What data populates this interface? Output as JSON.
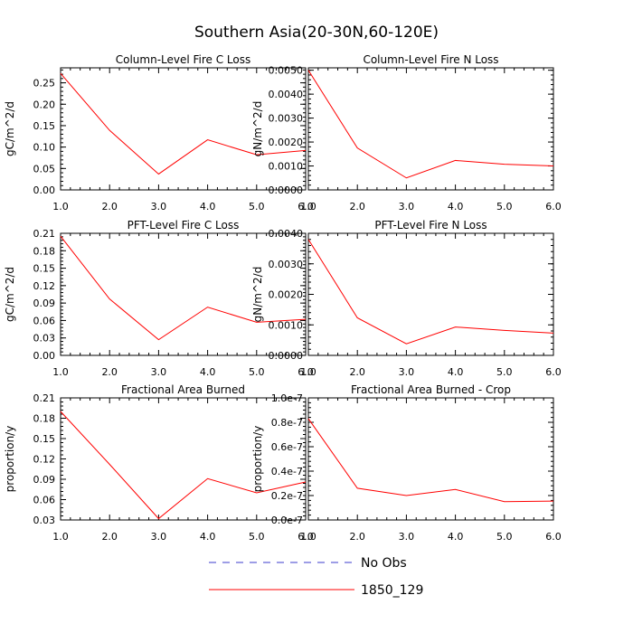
{
  "title": "Southern Asia(20-30N,60-120E)",
  "colors": {
    "model_line": "#ff0000",
    "obs_line": "#3b3bcc",
    "axis": "#000000"
  },
  "legend": {
    "placement": "bottom-center",
    "items": [
      {
        "label": "No Obs",
        "style": "dashed",
        "color": "#3b3bcc"
      },
      {
        "label": "1850_129",
        "style": "solid",
        "color": "#ff0000"
      }
    ]
  },
  "chart_data": [
    {
      "type": "line",
      "title": "Column-Level Fire C Loss",
      "ylabel": "gC/m^2/d",
      "x": [
        1.0,
        2.0,
        3.0,
        4.0,
        5.0,
        6.0
      ],
      "xticks": [
        "1.0",
        "2.0",
        "3.0",
        "4.0",
        "5.0",
        "6.0"
      ],
      "xlim": [
        1.0,
        6.0
      ],
      "yticks": [
        "0.00",
        "0.05",
        "0.10",
        "0.15",
        "0.20",
        "0.25"
      ],
      "ytick_values": [
        0.0,
        0.05,
        0.1,
        0.15,
        0.2,
        0.25
      ],
      "ylim": [
        0.0,
        0.285
      ],
      "series": [
        {
          "name": "1850_129",
          "values": [
            0.272,
            0.139,
            0.037,
            0.117,
            0.082,
            0.092
          ]
        }
      ]
    },
    {
      "type": "line",
      "title": "Column-Level Fire N Loss",
      "ylabel": "gN/m^2/d",
      "x": [
        1.0,
        2.0,
        3.0,
        4.0,
        5.0,
        6.0
      ],
      "xticks": [
        "1.0",
        "2.0",
        "3.0",
        "4.0",
        "5.0",
        "6.0"
      ],
      "xlim": [
        1.0,
        6.0
      ],
      "yticks": [
        "0.0000",
        "0.0010",
        "0.0020",
        "0.0030",
        "0.0040",
        "0.0050"
      ],
      "ytick_values": [
        0.0,
        0.001,
        0.002,
        0.003,
        0.004,
        0.005
      ],
      "ylim": [
        0.0,
        0.0051
      ],
      "series": [
        {
          "name": "1850_129",
          "values": [
            0.005,
            0.00175,
            0.0005,
            0.00123,
            0.00107,
            0.001
          ]
        }
      ]
    },
    {
      "type": "line",
      "title": "PFT-Level Fire C Loss",
      "ylabel": "gC/m^2/d",
      "x": [
        1.0,
        2.0,
        3.0,
        4.0,
        5.0,
        6.0
      ],
      "xticks": [
        "1.0",
        "2.0",
        "3.0",
        "4.0",
        "5.0",
        "6.0"
      ],
      "xlim": [
        1.0,
        6.0
      ],
      "yticks": [
        "0.00",
        "0.03",
        "0.06",
        "0.09",
        "0.12",
        "0.15",
        "0.18",
        "0.21"
      ],
      "ytick_values": [
        0.0,
        0.03,
        0.06,
        0.09,
        0.12,
        0.15,
        0.18,
        0.21
      ],
      "ylim": [
        0.0,
        0.21
      ],
      "series": [
        {
          "name": "1850_129",
          "values": [
            0.205,
            0.097,
            0.027,
            0.083,
            0.057,
            0.062
          ]
        }
      ]
    },
    {
      "type": "line",
      "title": "PFT-Level Fire N Loss",
      "ylabel": "gN/m^2/d",
      "x": [
        1.0,
        2.0,
        3.0,
        4.0,
        5.0,
        6.0
      ],
      "xticks": [
        "1.0",
        "2.0",
        "3.0",
        "4.0",
        "5.0",
        "6.0"
      ],
      "xlim": [
        1.0,
        6.0
      ],
      "yticks": [
        "0.0000",
        "0.0010",
        "0.0020",
        "0.0030",
        "0.0040"
      ],
      "ytick_values": [
        0.0,
        0.001,
        0.002,
        0.003,
        0.004
      ],
      "ylim": [
        0.0,
        0.004
      ],
      "series": [
        {
          "name": "1850_129",
          "values": [
            0.0038,
            0.00123,
            0.00038,
            0.00093,
            0.00082,
            0.00073
          ]
        }
      ]
    },
    {
      "type": "line",
      "title": "Fractional Area Burned",
      "ylabel": "proportion/y",
      "x": [
        1.0,
        2.0,
        3.0,
        4.0,
        5.0,
        6.0
      ],
      "xticks": [
        "1.0",
        "2.0",
        "3.0",
        "4.0",
        "5.0",
        "6.0"
      ],
      "xlim": [
        1.0,
        6.0
      ],
      "yticks": [
        "0.03",
        "0.06",
        "0.09",
        "0.12",
        "0.15",
        "0.18",
        "0.21"
      ],
      "ytick_values": [
        0.03,
        0.06,
        0.09,
        0.12,
        0.15,
        0.18,
        0.21
      ],
      "ylim": [
        0.03,
        0.21
      ],
      "series": [
        {
          "name": "1850_129",
          "values": [
            0.19,
            0.112,
            0.032,
            0.091,
            0.07,
            0.086
          ]
        }
      ]
    },
    {
      "type": "line",
      "title": "Fractional Area Burned - Crop",
      "ylabel": "proportion/y",
      "x": [
        1.0,
        2.0,
        3.0,
        4.0,
        5.0,
        6.0
      ],
      "xticks": [
        "1.0",
        "2.0",
        "3.0",
        "4.0",
        "5.0",
        "6.0"
      ],
      "xlim": [
        1.0,
        6.0
      ],
      "yticks": [
        "0.0e-7",
        "0.2e-7",
        "0.4e-7",
        "0.6e-7",
        "0.8e-7",
        "1.0e-7"
      ],
      "ytick_values": [
        0.0,
        2e-08,
        4e-08,
        6e-08,
        8e-08,
        1e-07
      ],
      "ylim": [
        0.0,
        1e-07
      ],
      "series": [
        {
          "name": "1850_129",
          "values": [
            8.3e-08,
            2.6e-08,
            2e-08,
            2.5e-08,
            1.5e-08,
            1.55e-08
          ]
        }
      ]
    }
  ]
}
